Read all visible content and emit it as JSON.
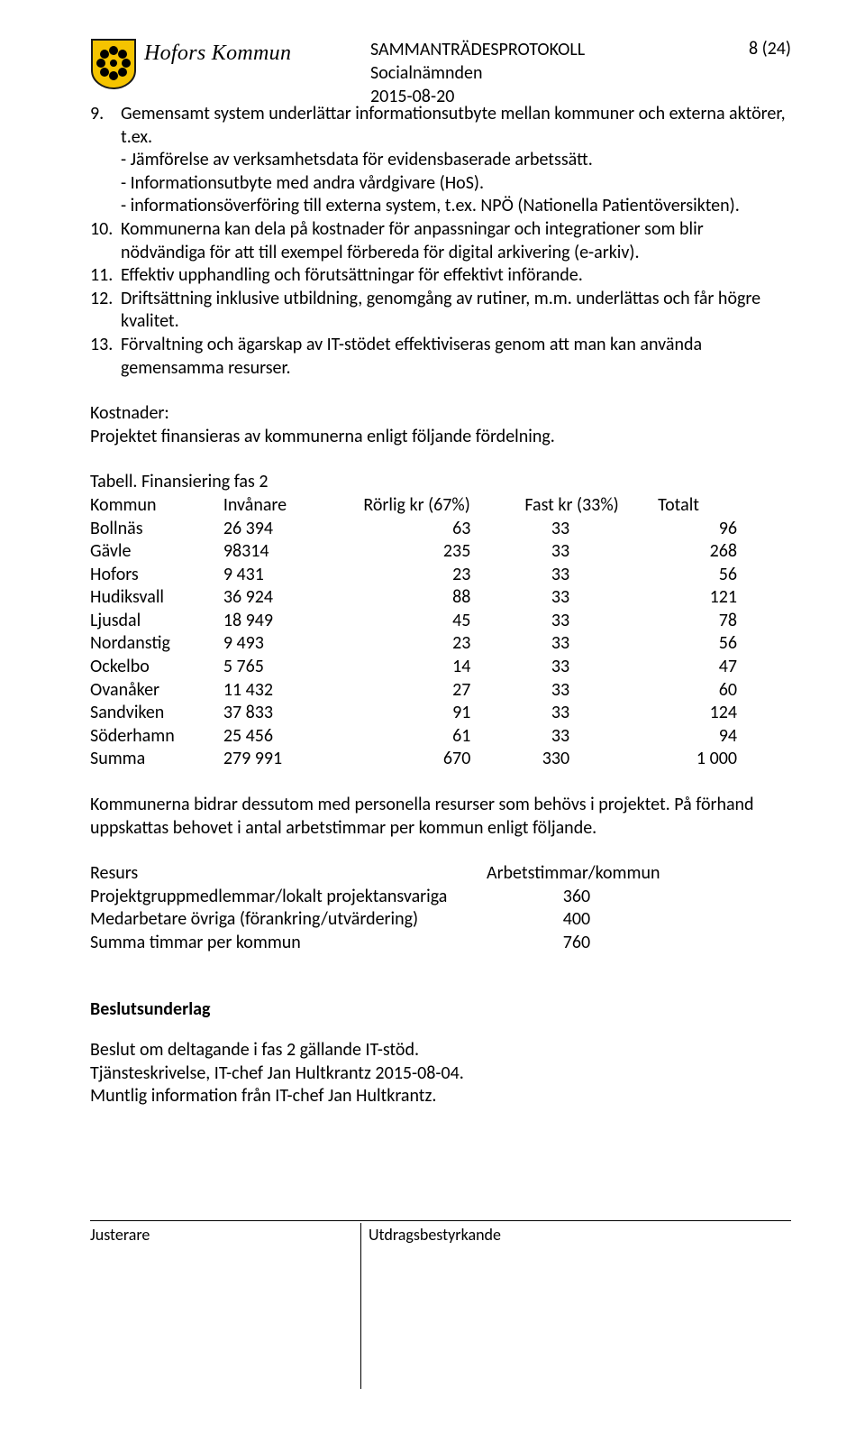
{
  "header": {
    "org_name": "Hofors Kommun",
    "title_line1": "SAMMANTRÄDESPROTOKOLL",
    "title_line2": "Socialnämnden",
    "title_line3": "2015-08-20",
    "page_indicator": "8 (24)"
  },
  "items": [
    {
      "num": "9.",
      "text": "Gemensamt system underlättar informationsutbyte mellan kommuner och externa aktörer, t.ex."
    },
    null,
    {
      "sub": true,
      "text": "- Jämförelse av verksamhetsdata för evidensbaserade arbetssätt."
    },
    {
      "sub": true,
      "text": "- Informationsutbyte med andra vårdgivare (HoS)."
    },
    {
      "sub": true,
      "text": "- informationsöverföring till externa system, t.ex. NPÖ (Nationella Patientöversikten)."
    },
    {
      "num": "10.",
      "text": "Kommunerna kan dela på kostnader för anpassningar och integrationer som blir nödvändiga för att till exempel förbereda för digital arkivering (e-arkiv)."
    },
    {
      "num": "11.",
      "text": "Effektiv upphandling och förutsättningar för effektivt införande."
    },
    {
      "num": "12.",
      "text": "Driftsättning inklusive utbildning, genomgång av rutiner, m.m. underlättas och får högre kvalitet."
    },
    {
      "num": "13.",
      "text": "Förvaltning och ägarskap av IT-stödet effektiviseras genom att man kan använda gemensamma resurser."
    }
  ],
  "kostnader_label": "Kostnader:",
  "kostnader_text": "Projektet finansieras av kommunerna enligt följande fördelning.",
  "table_caption": "Tabell. Finansiering fas 2",
  "fin_table": {
    "columns": [
      "Kommun",
      "Invånare",
      "Rörlig kr (67%)",
      "Fast kr (33%)",
      "Totalt"
    ],
    "rows": [
      [
        "Bollnäs",
        "26 394",
        "63",
        "33",
        "96"
      ],
      [
        "Gävle",
        "98314",
        "235",
        "33",
        "268"
      ],
      [
        "Hofors",
        "9 431",
        "23",
        "33",
        "56"
      ],
      [
        "Hudiksvall",
        "36 924",
        "88",
        "33",
        "121"
      ],
      [
        "Ljusdal",
        "18 949",
        "45",
        "33",
        "78"
      ],
      [
        "Nordanstig",
        "9 493",
        "23",
        "33",
        "56"
      ],
      [
        "Ockelbo",
        "5 765",
        "14",
        "33",
        "47"
      ],
      [
        "Ovanåker",
        "11 432",
        "27",
        "33",
        "60"
      ],
      [
        "Sandviken",
        "37 833",
        "91",
        "33",
        "124"
      ],
      [
        "Söderhamn",
        "25 456",
        "61",
        "33",
        "94"
      ],
      [
        "Summa",
        "279 991",
        "670",
        "330",
        "1 000"
      ]
    ]
  },
  "after_table_para": "Kommunerna bidrar dessutom med personella resurser som behövs i projektet. På förhand uppskattas behovet i antal arbetstimmar per kommun enligt följande.",
  "res_table": {
    "header": [
      "Resurs",
      "Arbetstimmar/kommun"
    ],
    "rows": [
      [
        "Projektgruppmedlemmar/lokalt projektansvariga",
        "360"
      ],
      [
        "Medarbetare övriga (förankring/utvärdering)",
        "400"
      ],
      [
        "Summa timmar per kommun",
        "760"
      ]
    ]
  },
  "beslutsunderlag_heading": "Beslutsunderlag",
  "beslut_lines": [
    "Beslut om deltagande i fas 2 gällande IT-stöd.",
    "Tjänsteskrivelse, IT-chef Jan Hultkrantz 2015-08-04.",
    "Muntlig information från IT-chef Jan Hultkrantz."
  ],
  "footer": {
    "left": "Justerare",
    "right": "Utdragsbestyrkande"
  },
  "colors": {
    "shield_yellow": "#f5c400",
    "shield_stroke": "#1a1a1a",
    "petal": "#000000"
  }
}
